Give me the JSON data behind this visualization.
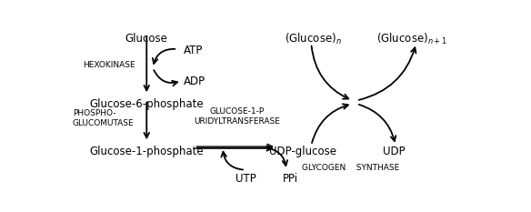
{
  "figsize": [
    5.84,
    2.33
  ],
  "dpi": 100,
  "bg_color": "white",
  "font_color": "black",
  "arrow_color": "black",
  "fs_mol": 8.5,
  "fs_enz": 6.5,
  "texts": {
    "Glucose": [
      0.195,
      0.955,
      "Glucose",
      "center",
      "top"
    ],
    "ATP": [
      0.285,
      0.845,
      "ATP",
      "left",
      "center"
    ],
    "ADP": [
      0.285,
      0.655,
      "ADP",
      "left",
      "center"
    ],
    "G6P": [
      0.195,
      0.555,
      "Glucose-6-phosphate",
      "center",
      "top"
    ],
    "G1P": [
      0.195,
      0.265,
      "Glucose-1-phosphate",
      "center",
      "top"
    ],
    "UDPglu": [
      0.575,
      0.265,
      "UDP-glucose",
      "center",
      "top"
    ],
    "UDP": [
      0.795,
      0.265,
      "UDP",
      "center",
      "top"
    ],
    "GluN": [
      0.6,
      0.96,
      "(Glucose)$_n$",
      "center",
      "top"
    ],
    "GluN1": [
      0.84,
      0.96,
      "(Glucose)$_{n+1}$",
      "center",
      "top"
    ],
    "UTP": [
      0.435,
      0.095,
      "UTP",
      "center",
      "top"
    ],
    "PPi": [
      0.545,
      0.095,
      "PPi",
      "center",
      "top"
    ],
    "HEXO": [
      0.04,
      0.76,
      "HEXOKINASE",
      "left",
      "center"
    ],
    "PHOSPHO": [
      0.015,
      0.43,
      "PHOSPHO-\nGLUCOMUTASE",
      "left",
      "center"
    ],
    "GLUT": [
      0.415,
      0.44,
      "GLUCOSE-1-P\nURIDYLTRANSFERASE",
      "center",
      "center"
    ],
    "GLYCO": [
      0.69,
      0.13,
      "GLYCOGEN    SYNTHASE",
      "center",
      "center"
    ]
  }
}
